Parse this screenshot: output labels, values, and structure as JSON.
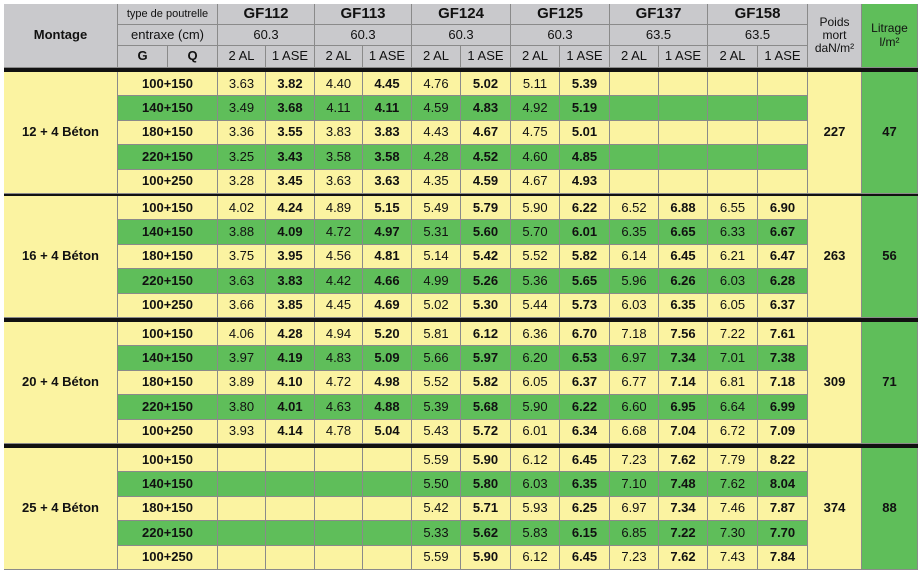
{
  "header": {
    "montage": "Montage",
    "type_label": "type de poutrelle",
    "entraxe_label": "entraxe (cm)",
    "g": "G",
    "q": "Q",
    "poids": "Poids mort daN/m²",
    "litrage": "Litrage l/m²"
  },
  "products": [
    {
      "name": "GF112",
      "entraxe": "60.3",
      "cols": [
        "2 AL",
        "1 ASE"
      ]
    },
    {
      "name": "GF113",
      "entraxe": "60.3",
      "cols": [
        "2 AL",
        "1 ASE"
      ]
    },
    {
      "name": "GF124",
      "entraxe": "60.3",
      "cols": [
        "2 AL",
        "1 ASE"
      ]
    },
    {
      "name": "GF125",
      "entraxe": "60.3",
      "cols": [
        "2 AL",
        "1 ASE"
      ]
    },
    {
      "name": "GF137",
      "entraxe": "63.5",
      "cols": [
        "2 AL",
        "1 ASE"
      ]
    },
    {
      "name": "GF158",
      "entraxe": "63.5",
      "cols": [
        "2 AL",
        "1 ASE"
      ]
    }
  ],
  "groups": [
    {
      "montage": "12 + 4 Béton",
      "poids": "227",
      "litrage": "47",
      "rows": [
        {
          "load": "100+150",
          "values": [
            "3.63",
            "3.82",
            "4.40",
            "4.45",
            "4.76",
            "5.02",
            "5.11",
            "5.39",
            null,
            null,
            null,
            null
          ]
        },
        {
          "load": "140+150",
          "values": [
            "3.49",
            "3.68",
            "4.11",
            "4.11",
            "4.59",
            "4.83",
            "4.92",
            "5.19",
            null,
            null,
            null,
            null
          ]
        },
        {
          "load": "180+150",
          "values": [
            "3.36",
            "3.55",
            "3.83",
            "3.83",
            "4.43",
            "4.67",
            "4.75",
            "5.01",
            null,
            null,
            null,
            null
          ]
        },
        {
          "load": "220+150",
          "values": [
            "3.25",
            "3.43",
            "3.58",
            "3.58",
            "4.28",
            "4.52",
            "4.60",
            "4.85",
            null,
            null,
            null,
            null
          ]
        },
        {
          "load": "100+250",
          "values": [
            "3.28",
            "3.45",
            "3.63",
            "3.63",
            "4.35",
            "4.59",
            "4.67",
            "4.93",
            null,
            null,
            null,
            null
          ]
        }
      ]
    },
    {
      "montage": "16 + 4 Béton",
      "poids": "263",
      "litrage": "56",
      "rows": [
        {
          "load": "100+150",
          "values": [
            "4.02",
            "4.24",
            "4.89",
            "5.15",
            "5.49",
            "5.79",
            "5.90",
            "6.22",
            "6.52",
            "6.88",
            "6.55",
            "6.90"
          ]
        },
        {
          "load": "140+150",
          "values": [
            "3.88",
            "4.09",
            "4.72",
            "4.97",
            "5.31",
            "5.60",
            "5.70",
            "6.01",
            "6.35",
            "6.65",
            "6.33",
            "6.67"
          ]
        },
        {
          "load": "180+150",
          "values": [
            "3.75",
            "3.95",
            "4.56",
            "4.81",
            "5.14",
            "5.42",
            "5.52",
            "5.82",
            "6.14",
            "6.45",
            "6.21",
            "6.47"
          ]
        },
        {
          "load": "220+150",
          "values": [
            "3.63",
            "3.83",
            "4.42",
            "4.66",
            "4.99",
            "5.26",
            "5.36",
            "5.65",
            "5.96",
            "6.26",
            "6.03",
            "6.28"
          ]
        },
        {
          "load": "100+250",
          "values": [
            "3.66",
            "3.85",
            "4.45",
            "4.69",
            "5.02",
            "5.30",
            "5.44",
            "5.73",
            "6.03",
            "6.35",
            "6.05",
            "6.37"
          ]
        }
      ]
    },
    {
      "montage": "20 + 4 Béton",
      "poids": "309",
      "litrage": "71",
      "rows": [
        {
          "load": "100+150",
          "values": [
            "4.06",
            "4.28",
            "4.94",
            "5.20",
            "5.81",
            "6.12",
            "6.36",
            "6.70",
            "7.18",
            "7.56",
            "7.22",
            "7.61"
          ]
        },
        {
          "load": "140+150",
          "values": [
            "3.97",
            "4.19",
            "4.83",
            "5.09",
            "5.66",
            "5.97",
            "6.20",
            "6.53",
            "6.97",
            "7.34",
            "7.01",
            "7.38"
          ]
        },
        {
          "load": "180+150",
          "values": [
            "3.89",
            "4.10",
            "4.72",
            "4.98",
            "5.52",
            "5.82",
            "6.05",
            "6.37",
            "6.77",
            "7.14",
            "6.81",
            "7.18"
          ]
        },
        {
          "load": "220+150",
          "values": [
            "3.80",
            "4.01",
            "4.63",
            "4.88",
            "5.39",
            "5.68",
            "5.90",
            "6.22",
            "6.60",
            "6.95",
            "6.64",
            "6.99"
          ]
        },
        {
          "load": "100+250",
          "values": [
            "3.93",
            "4.14",
            "4.78",
            "5.04",
            "5.43",
            "5.72",
            "6.01",
            "6.34",
            "6.68",
            "7.04",
            "6.72",
            "7.09"
          ]
        }
      ]
    },
    {
      "montage": "25 + 4 Béton",
      "poids": "374",
      "litrage": "88",
      "rows": [
        {
          "load": "100+150",
          "values": [
            null,
            null,
            null,
            null,
            "5.59",
            "5.90",
            "6.12",
            "6.45",
            "7.23",
            "7.62",
            "7.79",
            "8.22"
          ]
        },
        {
          "load": "140+150",
          "values": [
            null,
            null,
            null,
            null,
            "5.50",
            "5.80",
            "6.03",
            "6.35",
            "7.10",
            "7.48",
            "7.62",
            "8.04"
          ]
        },
        {
          "load": "180+150",
          "values": [
            null,
            null,
            null,
            null,
            "5.42",
            "5.71",
            "5.93",
            "6.25",
            "6.97",
            "7.34",
            "7.46",
            "7.87"
          ]
        },
        {
          "load": "220+150",
          "values": [
            null,
            null,
            null,
            null,
            "5.33",
            "5.62",
            "5.83",
            "6.15",
            "6.85",
            "7.22",
            "7.30",
            "7.70"
          ]
        },
        {
          "load": "100+250",
          "values": [
            null,
            null,
            null,
            null,
            "5.59",
            "5.90",
            "6.12",
            "6.45",
            "7.23",
            "7.62",
            "7.43",
            "7.84"
          ]
        }
      ]
    }
  ]
}
